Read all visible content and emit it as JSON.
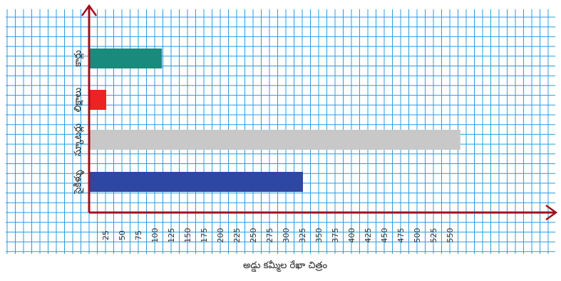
{
  "chart_data": {
    "type": "bar",
    "orientation": "horizontal",
    "categories": [
      "కార్లు",
      "లిక్షాలు",
      "స్కూటర్లు",
      "సైకిళ్ళు"
    ],
    "values": [
      110,
      25,
      565,
      325
    ],
    "colors": [
      "#1a8a7c",
      "#ee2222",
      "#c8c8c8",
      "#2e47a3"
    ],
    "title": "",
    "xlabel": "అడ్డు కమ్మీల రేఖా చిత్రం",
    "ylabel": "",
    "xticks": [
      25,
      50,
      75,
      100,
      125,
      150,
      175,
      200,
      225,
      250,
      275,
      300,
      325,
      350,
      375,
      400,
      425,
      450,
      475,
      500,
      525,
      550
    ],
    "xlim": [
      0,
      565
    ],
    "grid": true,
    "grid_color": "#2b9cdf",
    "axis_color": "#a01020"
  }
}
